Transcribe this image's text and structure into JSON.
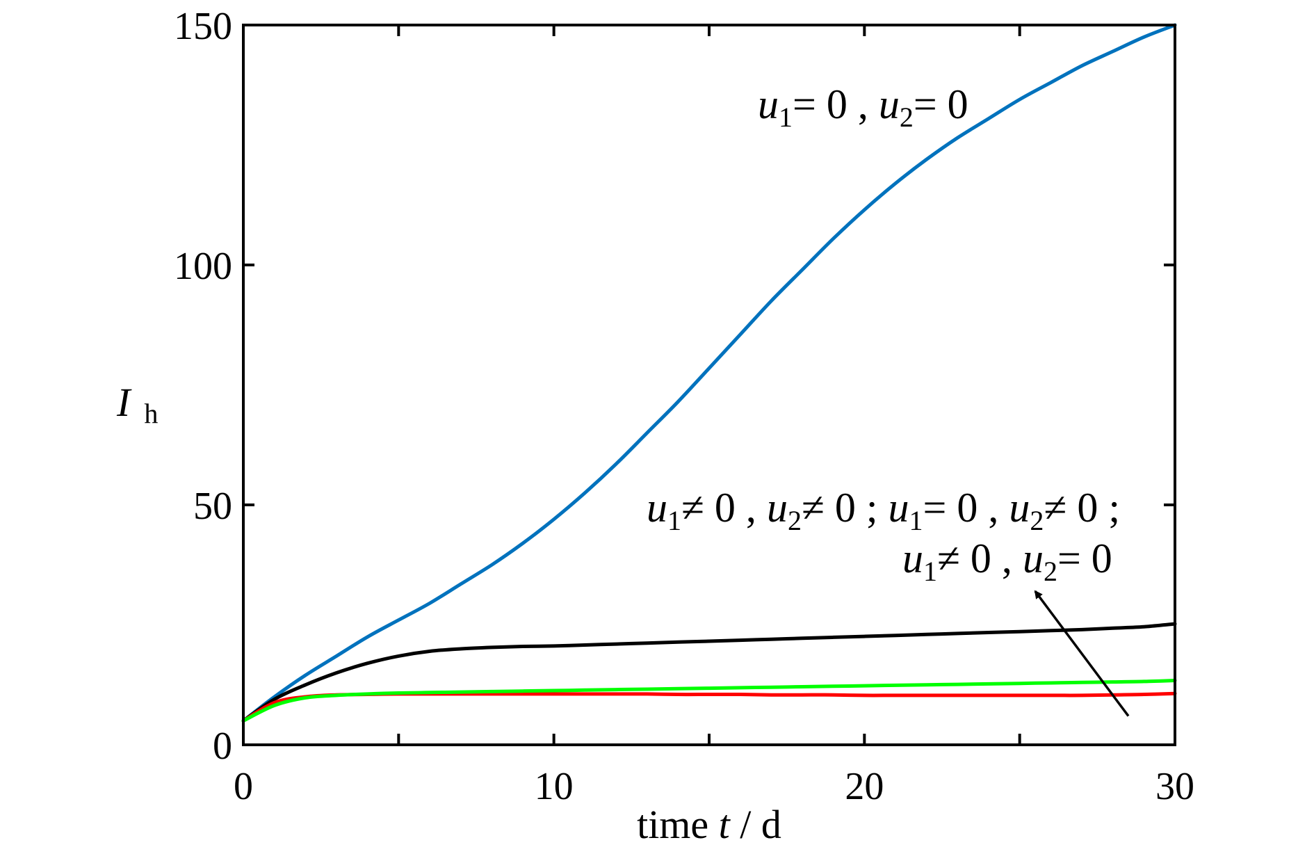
{
  "chart_data": {
    "type": "line",
    "xlabel": {
      "prefix": "time ",
      "var": "t",
      "suffix": " / d"
    },
    "ylabel": {
      "var": "I",
      "sub": "h"
    },
    "xlim": [
      0,
      30
    ],
    "ylim": [
      0,
      150
    ],
    "x_ticks": [
      0,
      10,
      20,
      30
    ],
    "y_ticks": [
      0,
      50,
      100,
      150
    ],
    "grid": false,
    "x": [
      0,
      1,
      2,
      3,
      4,
      5,
      6,
      7,
      8,
      9,
      10,
      11,
      12,
      13,
      14,
      15,
      16,
      17,
      18,
      19,
      20,
      21,
      22,
      23,
      24,
      25,
      26,
      27,
      28,
      29,
      30
    ],
    "series": [
      {
        "color": "#0072BD",
        "values": [
          5,
          10,
          14.5,
          18.5,
          22.5,
          26,
          29.5,
          33.5,
          37.5,
          42,
          47,
          52.5,
          58.5,
          65,
          71.5,
          78.5,
          85.5,
          92.5,
          99,
          105.5,
          111.5,
          117,
          122,
          126.5,
          130.5,
          134.5,
          138,
          141.5,
          144.5,
          147.5,
          150
        ]
      },
      {
        "color": "#000000",
        "values": [
          5,
          9.5,
          12.5,
          15,
          17,
          18.5,
          19.5,
          20,
          20.3,
          20.5,
          20.6,
          20.8,
          21,
          21.2,
          21.4,
          21.6,
          21.8,
          22,
          22.2,
          22.4,
          22.6,
          22.8,
          23,
          23.2,
          23.4,
          23.6,
          23.8,
          24,
          24.3,
          24.6,
          25.2
        ]
      },
      {
        "color": "#00FF00",
        "values": [
          5,
          8.2,
          9.8,
          10.3,
          10.6,
          10.8,
          10.9,
          11,
          11.1,
          11.2,
          11.3,
          11.4,
          11.5,
          11.6,
          11.7,
          11.8,
          11.9,
          12,
          12.1,
          12.2,
          12.3,
          12.4,
          12.5,
          12.6,
          12.7,
          12.8,
          12.9,
          13,
          13.1,
          13.2,
          13.4
        ]
      },
      {
        "color": "#FF0000",
        "values": [
          5,
          8.8,
          10,
          10.4,
          10.5,
          10.6,
          10.6,
          10.6,
          10.6,
          10.6,
          10.6,
          10.6,
          10.6,
          10.6,
          10.5,
          10.5,
          10.5,
          10.4,
          10.4,
          10.4,
          10.3,
          10.3,
          10.3,
          10.3,
          10.3,
          10.3,
          10.3,
          10.3,
          10.4,
          10.5,
          10.7
        ]
      }
    ],
    "annotations": [
      {
        "id": "top",
        "segments": [
          {
            "t": "u",
            "i": true
          },
          {
            "t": "1",
            "sub": true
          },
          {
            "t": "= 0 , "
          },
          {
            "t": "u",
            "i": true
          },
          {
            "t": "2",
            "sub": true
          },
          {
            "t": "= 0"
          }
        ]
      },
      {
        "id": "mid1",
        "segments": [
          {
            "t": "u",
            "i": true
          },
          {
            "t": "1",
            "sub": true
          },
          {
            "t": "≠ 0 , "
          },
          {
            "t": "u",
            "i": true
          },
          {
            "t": "2",
            "sub": true
          },
          {
            "t": "≠ 0 ; "
          },
          {
            "t": "u",
            "i": true
          },
          {
            "t": "1",
            "sub": true
          },
          {
            "t": "= 0 , "
          },
          {
            "t": "u",
            "i": true
          },
          {
            "t": "2",
            "sub": true
          },
          {
            "t": "≠ 0 ;"
          }
        ]
      },
      {
        "id": "mid2",
        "segments": [
          {
            "t": "u",
            "i": true
          },
          {
            "t": "1",
            "sub": true
          },
          {
            "t": "≠ 0 , "
          },
          {
            "t": "u",
            "i": true
          },
          {
            "t": "2",
            "sub": true
          },
          {
            "t": "= 0"
          }
        ]
      }
    ],
    "arrow": {
      "from": [
        28.5,
        6
      ],
      "to": [
        25.5,
        32
      ]
    }
  }
}
